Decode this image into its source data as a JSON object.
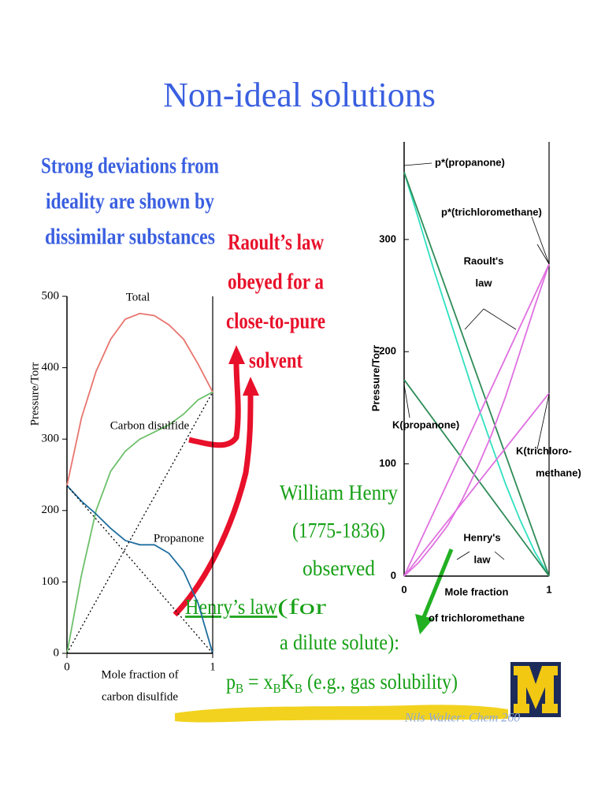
{
  "slide": {
    "title": "Non-ideal solutions",
    "intro": [
      "Strong deviations from",
      "ideality are shown by",
      "dissimilar substances"
    ],
    "raoult_note": [
      "Raoult’s law",
      "obeyed for a",
      "close-to-pure",
      "solvent"
    ],
    "henry_note": {
      "lines": [
        "William Henry",
        "(1775-1836)",
        "observed"
      ],
      "law": "Henry’s law",
      "law_rest": " (for",
      "condition": "a dilute solute):"
    },
    "formula": [
      "p",
      "B",
      " = x",
      "B",
      "K",
      "B",
      " (e.g., gas solubility)"
    ],
    "footer": "Nils Walter: Chem 260"
  },
  "chart_data": [
    {
      "type": "line",
      "y_label": "Pressure/Torr",
      "x_label": [
        "Mole fraction of",
        "carbon disulfide"
      ],
      "xlim": [
        0,
        1
      ],
      "xticks": [
        0,
        1
      ],
      "ylim": [
        0,
        500
      ],
      "yticks": [
        0,
        100,
        200,
        300,
        400,
        500
      ],
      "series": [
        {
          "name": "Total",
          "color": "#e8756f",
          "x": [
            0,
            0.1,
            0.2,
            0.3,
            0.4,
            0.5,
            0.6,
            0.7,
            0.8,
            0.9,
            1
          ],
          "values": [
            235,
            330,
            395,
            440,
            468,
            476,
            473,
            460,
            440,
            405,
            366
          ]
        },
        {
          "name": "Carbon disulfide",
          "color": "#6dc06a",
          "x": [
            0,
            0.1,
            0.2,
            0.3,
            0.4,
            0.5,
            0.6,
            0.7,
            0.8,
            0.9,
            1
          ],
          "values": [
            0,
            110,
            200,
            255,
            283,
            300,
            310,
            320,
            335,
            355,
            366
          ]
        },
        {
          "name": "Propanone",
          "color": "#1f6f9f",
          "x": [
            0,
            0.1,
            0.2,
            0.3,
            0.4,
            0.5,
            0.6,
            0.7,
            0.8,
            0.9,
            1
          ],
          "values": [
            235,
            213,
            195,
            175,
            158,
            152,
            152,
            140,
            115,
            70,
            0
          ]
        },
        {
          "color": "#000000",
          "style": "dotted",
          "x": [
            0,
            1
          ],
          "values": [
            0,
            366
          ]
        },
        {
          "color": "#000000",
          "style": "dotted",
          "x": [
            0,
            1
          ],
          "values": [
            235,
            0
          ]
        }
      ]
    },
    {
      "type": "line",
      "y_label": "Pressure/Torr",
      "x_label": [
        "Mole fraction",
        "of trichloromethane"
      ],
      "xlim": [
        0,
        1
      ],
      "xticks": [
        0,
        1
      ],
      "ylim": [
        0,
        387
      ],
      "yticks": [
        0,
        100,
        200,
        300
      ],
      "annotations": [
        "p*(propanone)",
        "p*(trichloromethane)",
        "Raoult's",
        "law",
        "K(propanone)",
        "K(trichloro-",
        "methane)",
        "Henry's",
        "law"
      ],
      "series": [
        {
          "color": "#2fe0c0",
          "x": [
            0,
            0.1,
            0.2,
            0.3,
            0.4,
            0.5,
            0.6,
            0.7,
            0.8,
            0.9,
            1
          ],
          "values": [
            360,
            318,
            275,
            235,
            195,
            155,
            118,
            82,
            50,
            22,
            0
          ]
        },
        {
          "color": "#2e8b57",
          "x": [
            0,
            1
          ],
          "values": [
            360,
            0
          ]
        },
        {
          "color": "#2e8b57",
          "x": [
            0,
            1
          ],
          "values": [
            175,
            0
          ]
        },
        {
          "color": "#e070e0",
          "x": [
            0,
            0.1,
            0.2,
            0.3,
            0.4,
            0.5,
            0.6,
            0.7,
            0.8,
            0.9,
            1
          ],
          "values": [
            0,
            12,
            28,
            45,
            68,
            95,
            125,
            160,
            200,
            240,
            278
          ]
        },
        {
          "color": "#e070e0",
          "x": [
            0,
            1
          ],
          "values": [
            0,
            278
          ]
        },
        {
          "color": "#e070e0",
          "x": [
            0,
            1
          ],
          "values": [
            0,
            163
          ]
        }
      ]
    }
  ]
}
